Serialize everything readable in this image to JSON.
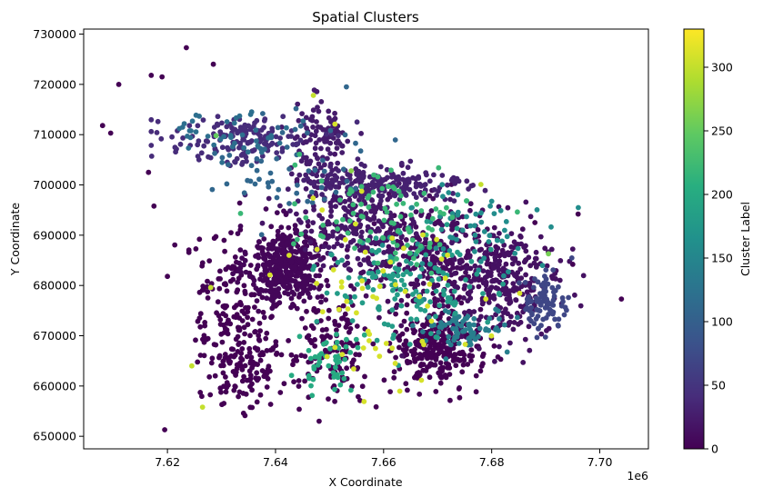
{
  "chart_data": {
    "type": "scatter",
    "title": "Spatial Clusters",
    "xlabel": "X Coordinate",
    "ylabel": "Y Coordinate",
    "x_offset_label": "1e6",
    "xlim": [
      7.6045,
      7.709
    ],
    "ylim": [
      647500,
      731000
    ],
    "x_ticks": [
      7.62,
      7.64,
      7.66,
      7.68,
      7.7
    ],
    "x_tick_labels": [
      "7.62",
      "7.64",
      "7.66",
      "7.68",
      "7.70"
    ],
    "y_ticks": [
      650000,
      660000,
      670000,
      680000,
      690000,
      700000,
      710000,
      720000,
      730000
    ],
    "y_tick_labels": [
      "650000",
      "660000",
      "670000",
      "680000",
      "690000",
      "700000",
      "710000",
      "720000",
      "730000"
    ],
    "grid": false,
    "colormap": "viridis",
    "colorbar": {
      "label": "Cluster Label",
      "range": [
        0,
        330
      ],
      "ticks": [
        0,
        50,
        100,
        150,
        200,
        250,
        300
      ],
      "tick_labels": [
        "0",
        "50",
        "100",
        "150",
        "200",
        "250",
        "300"
      ]
    },
    "points": [
      [
        7.6235,
        727300,
        0
      ],
      [
        7.6285,
        724000,
        0
      ],
      [
        7.611,
        720000,
        0
      ],
      [
        7.617,
        721800,
        0
      ],
      [
        7.619,
        721500,
        0
      ],
      [
        7.608,
        711800,
        0
      ],
      [
        7.6095,
        710300,
        0
      ],
      [
        7.6165,
        702500,
        0
      ],
      [
        7.6195,
        651300,
        0
      ],
      [
        7.62,
        681800,
        0
      ],
      [
        7.6175,
        695800,
        0
      ],
      [
        7.704,
        677300,
        0
      ],
      [
        7.696,
        694200,
        0
      ],
      [
        7.695,
        684200,
        0
      ],
      [
        7.688,
        692500,
        0
      ],
      [
        7.6245,
        664000,
        300
      ],
      [
        7.6265,
        655800,
        300
      ],
      [
        7.628,
        679600,
        300
      ],
      [
        7.6905,
        686300,
        260
      ],
      [
        7.647,
        717800,
        300
      ],
      [
        7.651,
        712100,
        310
      ],
      [
        7.629,
        709800,
        250
      ],
      [
        7.678,
        700100,
        300
      ],
      [
        7.654,
        702800,
        270
      ]
    ],
    "clusters": [
      {
        "cx": 7.642,
        "cy": 684000,
        "sx": 0.0035,
        "sy": 4000,
        "n": 420,
        "label": 5
      },
      {
        "cx": 7.655,
        "cy": 692500,
        "sx": 0.006,
        "sy": 4500,
        "n": 260,
        "label": 20
      },
      {
        "cx": 7.67,
        "cy": 686000,
        "sx": 0.007,
        "sy": 5000,
        "n": 300,
        "label": 10
      },
      {
        "cx": 7.67,
        "cy": 668000,
        "sx": 0.004,
        "sy": 4000,
        "n": 300,
        "label": 0
      },
      {
        "cx": 7.683,
        "cy": 680000,
        "sx": 0.005,
        "sy": 5000,
        "n": 260,
        "label": 15
      },
      {
        "cx": 7.633,
        "cy": 709000,
        "sx": 0.007,
        "sy": 2500,
        "n": 150,
        "label": 40
      },
      {
        "cx": 7.66,
        "cy": 700000,
        "sx": 0.008,
        "sy": 2000,
        "n": 180,
        "label": 30
      },
      {
        "cx": 7.648,
        "cy": 708000,
        "sx": 0.003,
        "sy": 5000,
        "n": 110,
        "label": 25
      },
      {
        "cx": 7.65,
        "cy": 667000,
        "sx": 0.004,
        "sy": 5000,
        "n": 140,
        "label": 0
      },
      {
        "cx": 7.634,
        "cy": 664000,
        "sx": 0.004,
        "sy": 5000,
        "n": 140,
        "label": 0
      },
      {
        "cx": 7.63,
        "cy": 678000,
        "sx": 0.005,
        "sy": 6000,
        "n": 120,
        "label": 0
      },
      {
        "cx": 7.69,
        "cy": 676000,
        "sx": 0.002,
        "sy": 3000,
        "n": 90,
        "label": 70
      },
      {
        "cx": 7.675,
        "cy": 672000,
        "sx": 0.004,
        "sy": 2000,
        "n": 80,
        "label": 140
      },
      {
        "cx": 7.665,
        "cy": 680000,
        "sx": 0.008,
        "sy": 5000,
        "n": 140,
        "label": 180
      },
      {
        "cx": 7.66,
        "cy": 693000,
        "sx": 0.009,
        "sy": 5000,
        "n": 90,
        "label": 220
      },
      {
        "cx": 7.662,
        "cy": 678000,
        "sx": 0.009,
        "sy": 9000,
        "n": 60,
        "label": 310
      },
      {
        "cx": 7.642,
        "cy": 703000,
        "sx": 0.008,
        "sy": 6000,
        "n": 60,
        "label": 110
      },
      {
        "cx": 7.65,
        "cy": 665000,
        "sx": 0.003,
        "sy": 3000,
        "n": 50,
        "label": 200
      },
      {
        "cx": 7.675,
        "cy": 690000,
        "sx": 0.007,
        "sy": 4000,
        "n": 60,
        "label": 160
      },
      {
        "cx": 7.632,
        "cy": 710000,
        "sx": 0.006,
        "sy": 2000,
        "n": 40,
        "label": 120
      }
    ]
  }
}
